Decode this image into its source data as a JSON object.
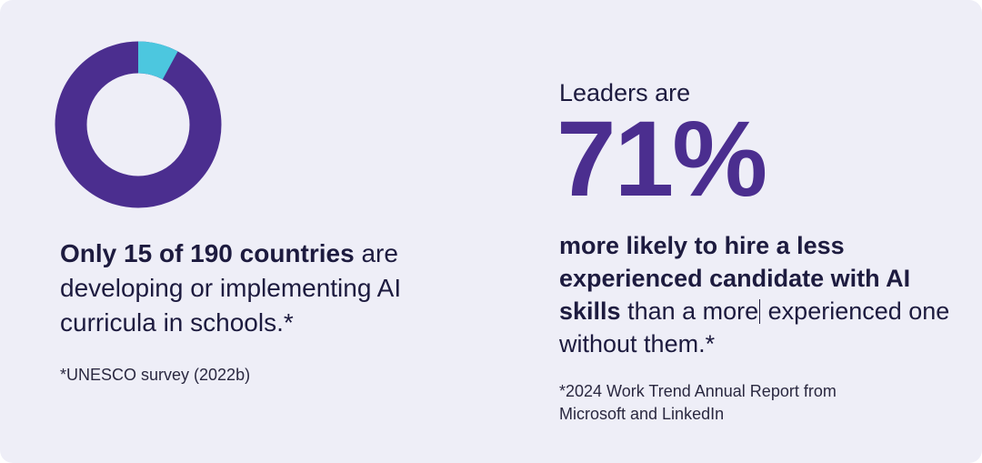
{
  "colors": {
    "background": "#eeeef7",
    "accent_purple": "#4b2e8f",
    "accent_cyan": "#4cc7df",
    "text_dark": "#1d1b3f"
  },
  "left": {
    "donut": {
      "highlight_count": 15,
      "total_count": 190
    },
    "stat_strong": "Only 15 of 190 countries",
    "stat_rest": " are developing or implementing AI curricula in schools.*",
    "footnote": "*UNESCO survey (2022b)"
  },
  "right": {
    "lead": "Leaders are",
    "percent": "71%",
    "stat_strong": "more likely to hire a less experienced candidate with AI skills",
    "stat_rest_before_cursor": " than a more",
    "stat_rest_after_cursor": " experienced one without them.*",
    "footnote": "*2024 Work Trend Annual Report from Microsoft and LinkedIn"
  }
}
